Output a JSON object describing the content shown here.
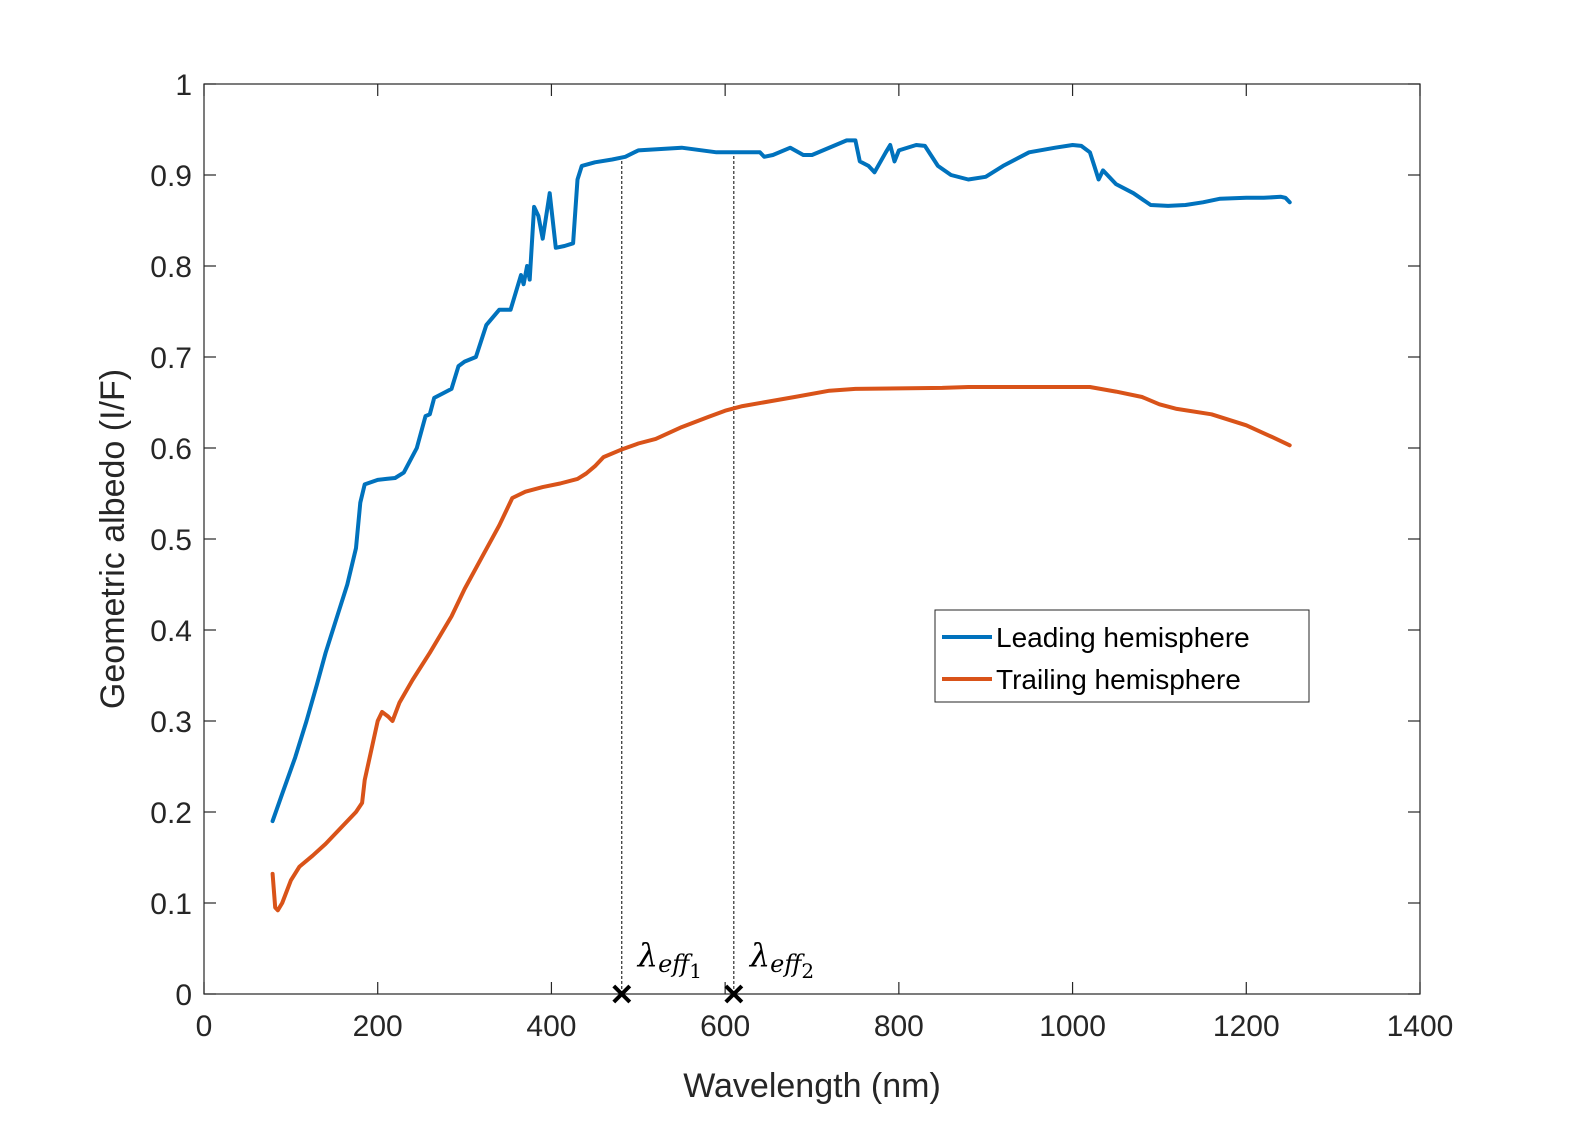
{
  "chart_data": {
    "type": "line",
    "title": "",
    "xlabel": "Wavelength (nm)",
    "ylabel": "Geometric albedo (I/F)",
    "xlim": [
      0,
      1400
    ],
    "ylim": [
      0,
      1
    ],
    "xticks": [
      0,
      200,
      400,
      600,
      800,
      1000,
      1200,
      1400
    ],
    "xtick_labels": [
      "0",
      "200",
      "400",
      "600",
      "800",
      "1000",
      "1200",
      "1400"
    ],
    "yticks": [
      0,
      0.1,
      0.2,
      0.3,
      0.4,
      0.5,
      0.6,
      0.7,
      0.8,
      0.9,
      1
    ],
    "ytick_labels": [
      "0",
      "0.1",
      "0.2",
      "0.3",
      "0.4",
      "0.5",
      "0.6",
      "0.7",
      "0.8",
      "0.9",
      "1"
    ],
    "grid": false,
    "legend_position": "center-right",
    "series": [
      {
        "name": "Leading hemisphere",
        "color": "#0072BD",
        "points": [
          [
            79,
            0.19
          ],
          [
            90,
            0.22
          ],
          [
            105,
            0.26
          ],
          [
            118,
            0.3
          ],
          [
            130,
            0.34
          ],
          [
            140,
            0.375
          ],
          [
            155,
            0.42
          ],
          [
            165,
            0.45
          ],
          [
            175,
            0.49
          ],
          [
            180,
            0.54
          ],
          [
            185,
            0.56
          ],
          [
            200,
            0.565
          ],
          [
            210,
            0.566
          ],
          [
            220,
            0.567
          ],
          [
            230,
            0.573
          ],
          [
            245,
            0.6
          ],
          [
            255,
            0.635
          ],
          [
            260,
            0.637
          ],
          [
            265,
            0.655
          ],
          [
            275,
            0.66
          ],
          [
            285,
            0.665
          ],
          [
            293,
            0.69
          ],
          [
            300,
            0.695
          ],
          [
            313,
            0.7
          ],
          [
            325,
            0.735
          ],
          [
            340,
            0.752
          ],
          [
            353,
            0.752
          ],
          [
            365,
            0.79
          ],
          [
            368,
            0.78
          ],
          [
            372,
            0.8
          ],
          [
            375,
            0.785
          ],
          [
            380,
            0.865
          ],
          [
            385,
            0.855
          ],
          [
            390,
            0.83
          ],
          [
            398,
            0.88
          ],
          [
            405,
            0.82
          ],
          [
            415,
            0.822
          ],
          [
            425,
            0.825
          ],
          [
            430,
            0.895
          ],
          [
            435,
            0.91
          ],
          [
            450,
            0.914
          ],
          [
            470,
            0.917
          ],
          [
            485,
            0.92
          ],
          [
            500,
            0.927
          ],
          [
            550,
            0.93
          ],
          [
            590,
            0.925
          ],
          [
            640,
            0.925
          ],
          [
            645,
            0.92
          ],
          [
            655,
            0.922
          ],
          [
            675,
            0.93
          ],
          [
            690,
            0.922
          ],
          [
            700,
            0.922
          ],
          [
            740,
            0.938
          ],
          [
            750,
            0.938
          ],
          [
            755,
            0.915
          ],
          [
            765,
            0.91
          ],
          [
            772,
            0.903
          ],
          [
            785,
            0.925
          ],
          [
            790,
            0.933
          ],
          [
            795,
            0.915
          ],
          [
            800,
            0.927
          ],
          [
            820,
            0.933
          ],
          [
            830,
            0.932
          ],
          [
            845,
            0.91
          ],
          [
            860,
            0.9
          ],
          [
            880,
            0.895
          ],
          [
            900,
            0.898
          ],
          [
            920,
            0.91
          ],
          [
            950,
            0.925
          ],
          [
            980,
            0.93
          ],
          [
            1000,
            0.933
          ],
          [
            1010,
            0.932
          ],
          [
            1020,
            0.925
          ],
          [
            1025,
            0.91
          ],
          [
            1030,
            0.895
          ],
          [
            1035,
            0.905
          ],
          [
            1050,
            0.89
          ],
          [
            1070,
            0.88
          ],
          [
            1090,
            0.867
          ],
          [
            1110,
            0.866
          ],
          [
            1130,
            0.867
          ],
          [
            1150,
            0.87
          ],
          [
            1170,
            0.874
          ],
          [
            1200,
            0.875
          ],
          [
            1220,
            0.875
          ],
          [
            1240,
            0.876
          ],
          [
            1245,
            0.875
          ],
          [
            1250,
            0.87
          ]
        ]
      },
      {
        "name": "Trailing hemisphere",
        "color": "#D95319",
        "points": [
          [
            79,
            0.132
          ],
          [
            82,
            0.095
          ],
          [
            85,
            0.092
          ],
          [
            90,
            0.1
          ],
          [
            100,
            0.125
          ],
          [
            110,
            0.14
          ],
          [
            125,
            0.152
          ],
          [
            140,
            0.165
          ],
          [
            160,
            0.185
          ],
          [
            175,
            0.2
          ],
          [
            182,
            0.21
          ],
          [
            185,
            0.235
          ],
          [
            200,
            0.3
          ],
          [
            205,
            0.31
          ],
          [
            212,
            0.305
          ],
          [
            217,
            0.3
          ],
          [
            225,
            0.32
          ],
          [
            240,
            0.345
          ],
          [
            260,
            0.375
          ],
          [
            285,
            0.415
          ],
          [
            300,
            0.445
          ],
          [
            320,
            0.48
          ],
          [
            340,
            0.515
          ],
          [
            355,
            0.545
          ],
          [
            370,
            0.552
          ],
          [
            390,
            0.557
          ],
          [
            410,
            0.561
          ],
          [
            430,
            0.566
          ],
          [
            440,
            0.572
          ],
          [
            450,
            0.58
          ],
          [
            460,
            0.59
          ],
          [
            480,
            0.598
          ],
          [
            500,
            0.605
          ],
          [
            520,
            0.61
          ],
          [
            550,
            0.623
          ],
          [
            580,
            0.634
          ],
          [
            600,
            0.641
          ],
          [
            620,
            0.646
          ],
          [
            680,
            0.656
          ],
          [
            720,
            0.663
          ],
          [
            750,
            0.665
          ],
          [
            850,
            0.666
          ],
          [
            880,
            0.667
          ],
          [
            950,
            0.667
          ],
          [
            1000,
            0.667
          ],
          [
            1020,
            0.667
          ],
          [
            1050,
            0.662
          ],
          [
            1080,
            0.656
          ],
          [
            1100,
            0.648
          ],
          [
            1120,
            0.643
          ],
          [
            1160,
            0.637
          ],
          [
            1200,
            0.625
          ],
          [
            1230,
            0.612
          ],
          [
            1250,
            0.603
          ]
        ]
      }
    ],
    "markers": [
      {
        "label": "λ",
        "sub": "eff",
        "index": "1",
        "x": 481,
        "y": 0
      },
      {
        "label": "λ",
        "sub": "eff",
        "index": "2",
        "x": 610,
        "y": 0
      }
    ],
    "reference_lines": [
      {
        "x": 481,
        "from_y": 0,
        "to_y": 0.918
      },
      {
        "x": 610,
        "from_y": 0,
        "to_y": 0.925
      }
    ]
  }
}
